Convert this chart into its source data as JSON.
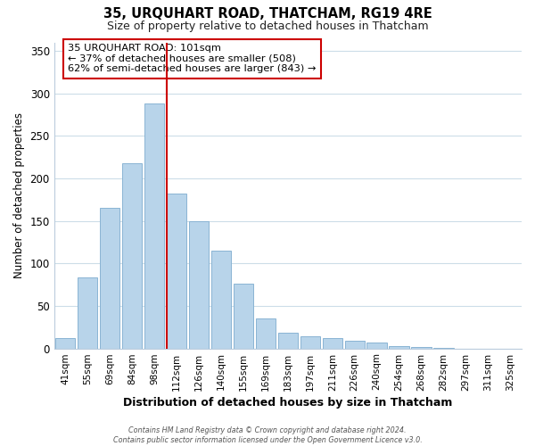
{
  "title": "35, URQUHART ROAD, THATCHAM, RG19 4RE",
  "subtitle": "Size of property relative to detached houses in Thatcham",
  "xlabel": "Distribution of detached houses by size in Thatcham",
  "ylabel": "Number of detached properties",
  "bar_labels": [
    "41sqm",
    "55sqm",
    "69sqm",
    "84sqm",
    "98sqm",
    "112sqm",
    "126sqm",
    "140sqm",
    "155sqm",
    "169sqm",
    "183sqm",
    "197sqm",
    "211sqm",
    "226sqm",
    "240sqm",
    "254sqm",
    "268sqm",
    "282sqm",
    "297sqm",
    "311sqm",
    "325sqm"
  ],
  "bar_values": [
    12,
    84,
    165,
    218,
    288,
    182,
    150,
    115,
    76,
    35,
    18,
    14,
    12,
    9,
    7,
    3,
    2,
    1,
    0,
    0,
    0
  ],
  "bar_color": "#b8d4ea",
  "bar_edge_color": "#8ab4d4",
  "vline_color": "#cc0000",
  "ylim": [
    0,
    360
  ],
  "yticks": [
    0,
    50,
    100,
    150,
    200,
    250,
    300,
    350
  ],
  "annotation_title": "35 URQUHART ROAD: 101sqm",
  "annotation_line1": "← 37% of detached houses are smaller (508)",
  "annotation_line2": "62% of semi-detached houses are larger (843) →",
  "footer1": "Contains HM Land Registry data © Crown copyright and database right 2024.",
  "footer2": "Contains public sector information licensed under the Open Government Licence v3.0.",
  "background_color": "#ffffff",
  "grid_color": "#ccdde8"
}
